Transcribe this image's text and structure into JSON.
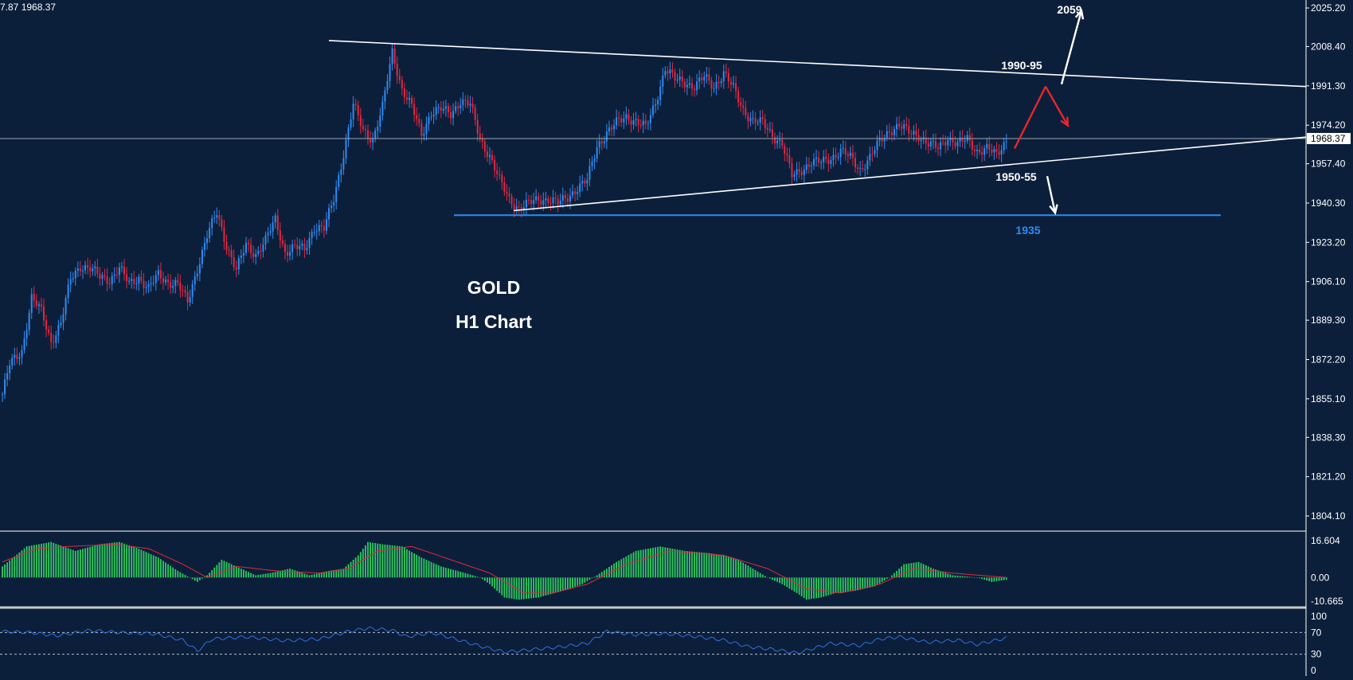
{
  "header": {
    "ohlc_text": "7.87 1968.37"
  },
  "chart_data": {
    "type": "candlestick",
    "symbol": "GOLD",
    "timeframe": "H1 Chart",
    "price_axis": {
      "ticks": [
        "2025.20",
        "2008.40",
        "1991.30",
        "1974.20",
        "1957.40",
        "1940.30",
        "1923.20",
        "1906.10",
        "1889.30",
        "1872.20",
        "1855.10",
        "1838.30",
        "1821.20",
        "1804.10"
      ],
      "current_price": "1968.37",
      "ylim": [
        1798,
        2031
      ]
    },
    "annotations": [
      {
        "text": "2059",
        "price": 2027
      },
      {
        "text": "1990-95",
        "price": 1999
      },
      {
        "text": "1950-55",
        "price": 1953
      },
      {
        "text": "1935",
        "price": 1932
      }
    ],
    "levels": {
      "support_line": 1935
    },
    "trendlines": [
      {
        "name": "upper",
        "from_bar": 0.24,
        "from_price": 2011,
        "to_bar": 1.0,
        "to_price": 1991
      },
      {
        "name": "lower",
        "from_bar": 0.38,
        "from_price": 1937,
        "to_bar": 1.0,
        "to_price": 1969
      }
    ],
    "scenario_arrows": [
      {
        "color": "#ffffff",
        "from_price": 1992,
        "to_price": 2024,
        "from_bar": 0.785,
        "to_bar": 0.8
      },
      {
        "color": "#e8252b",
        "from_price": 1964,
        "to_price": 1991,
        "from_bar": 0.75,
        "to_bar": 0.772
      },
      {
        "color": "#e8252b",
        "from_price": 1991,
        "to_price": 1974,
        "from_bar": 0.772,
        "to_bar": 0.79
      },
      {
        "color": "#ffffff",
        "from_price": 1952,
        "to_price": 1936,
        "from_bar": 0.775,
        "to_bar": 0.782
      }
    ],
    "price_path": [
      [
        0,
        1857
      ],
      [
        3,
        1870
      ],
      [
        8,
        1876
      ],
      [
        12,
        1899
      ],
      [
        16,
        1893
      ],
      [
        20,
        1880
      ],
      [
        24,
        1888
      ],
      [
        28,
        1907
      ],
      [
        32,
        1913
      ],
      [
        36,
        1912
      ],
      [
        40,
        1908
      ],
      [
        44,
        1907
      ],
      [
        48,
        1912
      ],
      [
        52,
        1905
      ],
      [
        56,
        1908
      ],
      [
        60,
        1903
      ],
      [
        64,
        1909
      ],
      [
        68,
        1906
      ],
      [
        72,
        1905
      ],
      [
        76,
        1897
      ],
      [
        80,
        1912
      ],
      [
        84,
        1926
      ],
      [
        88,
        1936
      ],
      [
        92,
        1922
      ],
      [
        96,
        1911
      ],
      [
        100,
        1922
      ],
      [
        104,
        1918
      ],
      [
        108,
        1924
      ],
      [
        112,
        1933
      ],
      [
        116,
        1919
      ],
      [
        120,
        1921
      ],
      [
        124,
        1920
      ],
      [
        128,
        1930
      ],
      [
        132,
        1929
      ],
      [
        136,
        1942
      ],
      [
        140,
        1962
      ],
      [
        144,
        1983
      ],
      [
        148,
        1972
      ],
      [
        152,
        1968
      ],
      [
        156,
        1982
      ],
      [
        160,
        2006
      ],
      [
        164,
        1990
      ],
      [
        168,
        1982
      ],
      [
        172,
        1970
      ],
      [
        176,
        1980
      ],
      [
        180,
        1981
      ],
      [
        184,
        1979
      ],
      [
        188,
        1985
      ],
      [
        192,
        1983
      ],
      [
        196,
        1968
      ],
      [
        200,
        1961
      ],
      [
        204,
        1950
      ],
      [
        208,
        1942
      ],
      [
        212,
        1938
      ],
      [
        216,
        1940
      ],
      [
        220,
        1942
      ],
      [
        224,
        1942
      ],
      [
        228,
        1940
      ],
      [
        232,
        1943
      ],
      [
        236,
        1947
      ],
      [
        240,
        1950
      ],
      [
        244,
        1965
      ],
      [
        248,
        1971
      ],
      [
        252,
        1975
      ],
      [
        256,
        1978
      ],
      [
        260,
        1976
      ],
      [
        264,
        1973
      ],
      [
        268,
        1984
      ],
      [
        272,
        1999
      ],
      [
        276,
        1994
      ],
      [
        280,
        1993
      ],
      [
        284,
        1991
      ],
      [
        288,
        1995
      ],
      [
        292,
        1991
      ],
      [
        296,
        1997
      ],
      [
        300,
        1990
      ],
      [
        304,
        1981
      ],
      [
        308,
        1976
      ],
      [
        312,
        1975
      ],
      [
        316,
        1970
      ],
      [
        320,
        1966
      ],
      [
        324,
        1952
      ],
      [
        328,
        1955
      ],
      [
        332,
        1958
      ],
      [
        336,
        1958
      ],
      [
        340,
        1960
      ],
      [
        344,
        1963
      ],
      [
        348,
        1960
      ],
      [
        352,
        1955
      ],
      [
        356,
        1960
      ],
      [
        360,
        1967
      ],
      [
        364,
        1972
      ],
      [
        368,
        1974
      ],
      [
        372,
        1971
      ],
      [
        376,
        1970
      ],
      [
        380,
        1966
      ],
      [
        384,
        1964
      ],
      [
        388,
        1969
      ],
      [
        392,
        1966
      ],
      [
        396,
        1968
      ],
      [
        400,
        1963
      ],
      [
        404,
        1964
      ],
      [
        408,
        1961
      ],
      [
        412,
        1968
      ]
    ],
    "indicators": [
      {
        "name": "MACD",
        "ticks": [
          "16.604",
          "0.00",
          "-10.665"
        ],
        "ylim": [
          -11.5,
          17.5
        ],
        "histogram_path": [
          [
            0,
            5
          ],
          [
            10,
            14
          ],
          [
            20,
            16
          ],
          [
            30,
            12
          ],
          [
            40,
            15
          ],
          [
            48,
            16
          ],
          [
            56,
            13
          ],
          [
            64,
            9
          ],
          [
            72,
            3
          ],
          [
            80,
            -2
          ],
          [
            84,
            1
          ],
          [
            90,
            8
          ],
          [
            96,
            5
          ],
          [
            104,
            1
          ],
          [
            110,
            2
          ],
          [
            118,
            4
          ],
          [
            126,
            1
          ],
          [
            134,
            3
          ],
          [
            140,
            4
          ],
          [
            146,
            10
          ],
          [
            150,
            16
          ],
          [
            156,
            15
          ],
          [
            164,
            14
          ],
          [
            172,
            9
          ],
          [
            180,
            5
          ],
          [
            190,
            2
          ],
          [
            196,
            0
          ],
          [
            200,
            -3
          ],
          [
            206,
            -9
          ],
          [
            212,
            -10
          ],
          [
            220,
            -9
          ],
          [
            230,
            -6
          ],
          [
            238,
            -3
          ],
          [
            244,
            1
          ],
          [
            252,
            7
          ],
          [
            260,
            12
          ],
          [
            270,
            14
          ],
          [
            280,
            12
          ],
          [
            290,
            11
          ],
          [
            296,
            10
          ],
          [
            302,
            8
          ],
          [
            308,
            4
          ],
          [
            314,
            0
          ],
          [
            320,
            -3
          ],
          [
            326,
            -7
          ],
          [
            330,
            -10
          ],
          [
            336,
            -9
          ],
          [
            342,
            -7
          ],
          [
            350,
            -6
          ],
          [
            358,
            -4
          ],
          [
            364,
            0
          ],
          [
            370,
            6
          ],
          [
            376,
            7
          ],
          [
            382,
            4
          ],
          [
            390,
            1
          ],
          [
            400,
            0
          ],
          [
            406,
            -2
          ],
          [
            412,
            -1
          ]
        ],
        "signal_path": [
          [
            0,
            7
          ],
          [
            14,
            13
          ],
          [
            28,
            14
          ],
          [
            46,
            15
          ],
          [
            60,
            13
          ],
          [
            74,
            6
          ],
          [
            84,
            0
          ],
          [
            96,
            5
          ],
          [
            112,
            3
          ],
          [
            130,
            2
          ],
          [
            142,
            4
          ],
          [
            154,
            12
          ],
          [
            168,
            14
          ],
          [
            184,
            8
          ],
          [
            200,
            2
          ],
          [
            214,
            -7
          ],
          [
            226,
            -7
          ],
          [
            240,
            -3
          ],
          [
            256,
            6
          ],
          [
            274,
            12
          ],
          [
            296,
            10
          ],
          [
            314,
            4
          ],
          [
            330,
            -5
          ],
          [
            344,
            -7
          ],
          [
            360,
            -3
          ],
          [
            374,
            4
          ],
          [
            390,
            2
          ],
          [
            412,
            0
          ]
        ]
      },
      {
        "name": "RSI",
        "ticks": [
          "100",
          "70",
          "30",
          "0"
        ],
        "ylim": [
          0,
          100
        ],
        "levels": [
          70,
          30
        ],
        "line_path": [
          [
            0,
            72
          ],
          [
            12,
            70
          ],
          [
            22,
            64
          ],
          [
            36,
            74
          ],
          [
            48,
            70
          ],
          [
            62,
            68
          ],
          [
            74,
            56
          ],
          [
            80,
            36
          ],
          [
            86,
            58
          ],
          [
            100,
            62
          ],
          [
            116,
            55
          ],
          [
            130,
            58
          ],
          [
            142,
            72
          ],
          [
            150,
            78
          ],
          [
            160,
            74
          ],
          [
            166,
            62
          ],
          [
            176,
            70
          ],
          [
            186,
            58
          ],
          [
            196,
            45
          ],
          [
            206,
            34
          ],
          [
            216,
            38
          ],
          [
            230,
            44
          ],
          [
            240,
            50
          ],
          [
            248,
            72
          ],
          [
            260,
            66
          ],
          [
            272,
            68
          ],
          [
            286,
            62
          ],
          [
            296,
            56
          ],
          [
            306,
            44
          ],
          [
            318,
            38
          ],
          [
            326,
            32
          ],
          [
            340,
            50
          ],
          [
            352,
            46
          ],
          [
            360,
            58
          ],
          [
            368,
            62
          ],
          [
            380,
            52
          ],
          [
            392,
            56
          ],
          [
            400,
            48
          ],
          [
            412,
            60
          ]
        ]
      }
    ]
  }
}
